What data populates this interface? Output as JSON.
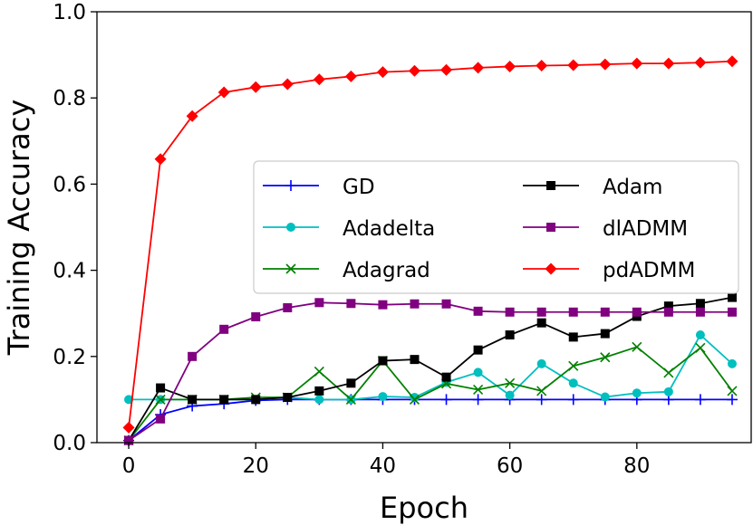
{
  "chart_data": {
    "type": "line",
    "title": "",
    "xlabel": "Epoch",
    "ylabel": "Training Accuracy",
    "xlim": [
      -5,
      98
    ],
    "ylim": [
      0.0,
      1.0
    ],
    "xticks": [
      0,
      20,
      40,
      60,
      80
    ],
    "xtick_labels": [
      "0",
      "20",
      "40",
      "60",
      "80"
    ],
    "yticks": [
      0.0,
      0.2,
      0.4,
      0.6,
      0.8,
      1.0
    ],
    "ytick_labels": [
      "0.0",
      "0.2",
      "0.4",
      "0.6",
      "0.8",
      "1.0"
    ],
    "grid": false,
    "legend_position": "center-right",
    "x": [
      0,
      5,
      10,
      15,
      20,
      25,
      30,
      35,
      40,
      45,
      50,
      55,
      60,
      65,
      70,
      75,
      80,
      85,
      90,
      95
    ],
    "series": [
      {
        "name": "GD",
        "color": "#0000ff",
        "marker": "plus",
        "values": [
          0.005,
          0.065,
          0.085,
          0.09,
          0.098,
          0.1,
          0.1,
          0.1,
          0.1,
          0.1,
          0.1,
          0.1,
          0.1,
          0.1,
          0.1,
          0.1,
          0.1,
          0.1,
          0.1,
          0.1
        ]
      },
      {
        "name": "Adadelta",
        "color": "#00bfbf",
        "marker": "circle",
        "values": [
          0.1,
          0.1,
          0.1,
          0.1,
          0.1,
          0.105,
          0.1,
          0.1,
          0.107,
          0.105,
          0.14,
          0.163,
          0.11,
          0.183,
          0.138,
          0.106,
          0.115,
          0.118,
          0.25,
          0.183
        ]
      },
      {
        "name": "Adagrad",
        "color": "#008000",
        "marker": "x",
        "values": [
          0.005,
          0.1,
          0.1,
          0.1,
          0.105,
          0.105,
          0.165,
          0.1,
          0.19,
          0.1,
          0.137,
          0.123,
          0.138,
          0.12,
          0.178,
          0.198,
          0.222,
          0.162,
          0.22,
          0.12
        ]
      },
      {
        "name": "Adam",
        "color": "#000000",
        "marker": "square",
        "values": [
          0.005,
          0.127,
          0.1,
          0.1,
          0.1,
          0.105,
          0.12,
          0.138,
          0.19,
          0.193,
          0.152,
          0.215,
          0.25,
          0.278,
          0.245,
          0.253,
          0.293,
          0.317,
          0.323,
          0.337
        ]
      },
      {
        "name": "dlADMM",
        "color": "#800080",
        "marker": "square",
        "values": [
          0.005,
          0.055,
          0.2,
          0.263,
          0.292,
          0.313,
          0.325,
          0.323,
          0.32,
          0.322,
          0.322,
          0.305,
          0.303,
          0.303,
          0.303,
          0.303,
          0.303,
          0.303,
          0.303,
          0.303
        ]
      },
      {
        "name": "pdADMM",
        "color": "#ff0000",
        "marker": "diamond",
        "values": [
          0.035,
          0.658,
          0.758,
          0.813,
          0.825,
          0.832,
          0.843,
          0.85,
          0.86,
          0.863,
          0.865,
          0.87,
          0.873,
          0.875,
          0.876,
          0.878,
          0.88,
          0.88,
          0.882,
          0.885
        ]
      }
    ]
  }
}
